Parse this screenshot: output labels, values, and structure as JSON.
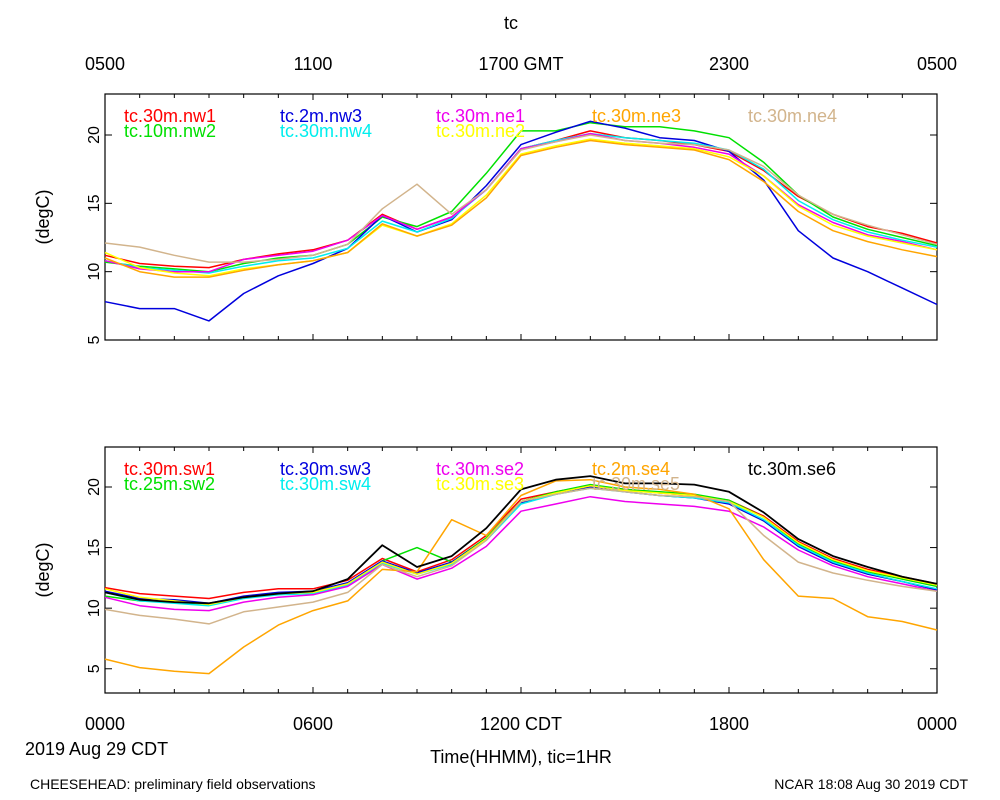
{
  "title": "tc",
  "top_axis_labels": [
    "0500",
    "1100",
    "1700 GMT",
    "2300",
    "0500"
  ],
  "bottom_axis_labels": [
    "0000",
    "0600",
    "1200 CDT",
    "1800",
    "0000"
  ],
  "date_label": "2019 Aug 29 CDT",
  "xlabel": "Time(HHMM), tic=1HR",
  "footer_left": "CHEESEHEAD: preliminary field observations",
  "footer_right": "NCAR 18:08 Aug 30 2019 CDT",
  "chart_data": [
    {
      "type": "line",
      "panel": "top",
      "ylabel": "(degC)",
      "ylim": [
        5,
        23
      ],
      "yticks": [
        5,
        10,
        15,
        20
      ],
      "xlim": [
        0,
        24
      ],
      "x": [
        0,
        1,
        2,
        3,
        4,
        5,
        6,
        7,
        8,
        9,
        10,
        11,
        12,
        13,
        14,
        15,
        16,
        17,
        18,
        19,
        20,
        21,
        22,
        23,
        24
      ],
      "series": [
        {
          "name": "tc.30m.nw1",
          "color": "#ff0000",
          "values": [
            11.2,
            10.6,
            10.4,
            10.3,
            10.9,
            11.3,
            11.6,
            12.3,
            14.2,
            13.1,
            14.0,
            16.0,
            19.0,
            19.6,
            20.3,
            19.8,
            19.6,
            19.3,
            18.8,
            17.4,
            15.5,
            14.2,
            13.3,
            12.8,
            12.1
          ]
        },
        {
          "name": "tc.10m.nw2",
          "color": "#00e000",
          "values": [
            10.7,
            10.4,
            10.2,
            10.0,
            10.6,
            11.0,
            11.2,
            12.0,
            14.0,
            13.3,
            14.4,
            17.2,
            20.3,
            20.3,
            20.9,
            20.6,
            20.6,
            20.3,
            19.8,
            18.0,
            15.6,
            14.0,
            13.1,
            12.5,
            11.9
          ]
        },
        {
          "name": "tc.2m.nw3",
          "color": "#0000dd",
          "values": [
            7.8,
            7.3,
            7.3,
            6.4,
            8.4,
            9.7,
            10.6,
            11.7,
            14.1,
            12.9,
            13.8,
            16.3,
            19.3,
            20.2,
            21.0,
            20.5,
            19.8,
            19.6,
            18.8,
            16.7,
            13.0,
            11.0,
            10.0,
            8.8,
            7.6
          ]
        },
        {
          "name": "tc.30m.nw4",
          "color": "#00eeee",
          "values": [
            10.8,
            10.3,
            10.1,
            9.9,
            10.4,
            10.8,
            11.0,
            11.7,
            13.7,
            12.9,
            13.9,
            16.0,
            19.0,
            19.6,
            20.1,
            19.8,
            19.6,
            19.4,
            18.9,
            17.5,
            15.2,
            13.8,
            12.9,
            12.3,
            11.8
          ]
        },
        {
          "name": "tc.30m.ne1",
          "color": "#ee00ee",
          "values": [
            10.8,
            10.2,
            10.0,
            10.0,
            10.9,
            11.2,
            11.5,
            12.3,
            14.1,
            13.1,
            14.0,
            16.0,
            19.0,
            19.5,
            20.1,
            19.6,
            19.4,
            19.1,
            18.6,
            17.0,
            14.9,
            13.6,
            12.7,
            12.2,
            11.6
          ]
        },
        {
          "name": "tc.30m.ne2",
          "color": "#ffff00",
          "values": [
            11.4,
            10.3,
            9.9,
            9.7,
            10.2,
            10.5,
            10.8,
            11.4,
            13.4,
            12.6,
            13.5,
            15.6,
            18.6,
            19.2,
            19.7,
            19.4,
            19.2,
            19.0,
            18.4,
            17.0,
            14.8,
            13.4,
            12.6,
            12.1,
            11.6
          ]
        },
        {
          "name": "tc.30m.ne3",
          "color": "#ffa500",
          "values": [
            11.0,
            10.0,
            9.6,
            9.6,
            10.1,
            10.5,
            10.8,
            11.4,
            13.5,
            12.6,
            13.4,
            15.4,
            18.5,
            19.1,
            19.6,
            19.3,
            19.1,
            18.9,
            18.2,
            16.6,
            14.4,
            13.0,
            12.2,
            11.6,
            11.1
          ]
        },
        {
          "name": "tc.30m.ne4",
          "color": "#d2b48c",
          "values": [
            12.1,
            11.8,
            11.2,
            10.7,
            10.7,
            10.9,
            11.2,
            12.0,
            14.6,
            16.4,
            14.2,
            16.0,
            18.9,
            19.5,
            20.0,
            19.6,
            19.4,
            19.3,
            18.9,
            17.7,
            15.6,
            14.2,
            13.4,
            12.7,
            12.0
          ]
        }
      ]
    },
    {
      "type": "line",
      "panel": "bottom",
      "ylabel": "(degC)",
      "ylim": [
        3,
        23.3
      ],
      "yticks": [
        5,
        10,
        15,
        20
      ],
      "xlim": [
        0,
        24
      ],
      "x": [
        0,
        1,
        2,
        3,
        4,
        5,
        6,
        7,
        8,
        9,
        10,
        11,
        12,
        13,
        14,
        15,
        16,
        17,
        18,
        19,
        20,
        21,
        22,
        23,
        24
      ],
      "series": [
        {
          "name": "tc.30m.sw1",
          "color": "#ff0000",
          "values": [
            11.7,
            11.2,
            11.0,
            10.8,
            11.3,
            11.6,
            11.6,
            12.3,
            14.1,
            13.0,
            14.0,
            16.0,
            19.0,
            19.6,
            20.1,
            19.8,
            19.5,
            19.3,
            18.9,
            17.6,
            15.5,
            14.1,
            13.2,
            12.6,
            12.0
          ]
        },
        {
          "name": "tc.25m.sw2",
          "color": "#00e000",
          "values": [
            11.0,
            10.6,
            10.5,
            10.3,
            10.9,
            11.2,
            11.3,
            12.0,
            13.9,
            15.0,
            13.8,
            15.8,
            18.8,
            19.6,
            20.2,
            19.8,
            19.6,
            19.4,
            18.9,
            17.5,
            15.3,
            13.9,
            13.0,
            12.4,
            11.8
          ]
        },
        {
          "name": "tc.30m.sw3",
          "color": "#0000dd",
          "values": [
            11.4,
            10.8,
            10.7,
            10.4,
            11.0,
            11.3,
            11.4,
            12.1,
            13.9,
            12.9,
            13.8,
            15.7,
            18.7,
            19.4,
            20.0,
            19.6,
            19.3,
            19.1,
            18.6,
            17.2,
            15.1,
            13.7,
            12.8,
            12.2,
            11.5
          ]
        },
        {
          "name": "tc.30m.sw4",
          "color": "#00eeee",
          "values": [
            11.3,
            10.6,
            10.4,
            10.2,
            10.8,
            11.1,
            11.2,
            11.9,
            13.7,
            12.8,
            13.6,
            15.6,
            18.6,
            19.4,
            19.9,
            19.6,
            19.3,
            19.1,
            18.7,
            17.3,
            15.2,
            13.8,
            12.9,
            12.2,
            11.6
          ]
        },
        {
          "name": "tc.30m.se2",
          "color": "#ee00ee",
          "values": [
            10.9,
            10.2,
            9.9,
            9.8,
            10.5,
            10.9,
            11.1,
            11.8,
            13.6,
            12.4,
            13.3,
            15.1,
            18.0,
            18.6,
            19.2,
            18.8,
            18.6,
            18.4,
            18.0,
            16.7,
            14.8,
            13.5,
            12.6,
            12.0,
            11.4
          ]
        },
        {
          "name": "tc.30m.se3",
          "color": "#ffff00",
          "values": [
            11.6,
            10.9,
            10.6,
            10.3,
            10.9,
            11.2,
            11.3,
            12.0,
            13.8,
            12.8,
            13.7,
            15.7,
            18.8,
            19.5,
            20.1,
            19.7,
            19.5,
            19.3,
            18.8,
            17.5,
            15.4,
            14.0,
            13.1,
            12.5,
            11.9
          ]
        },
        {
          "name": "tc.2m.se4",
          "color": "#ffa500",
          "values": [
            5.8,
            5.1,
            4.8,
            4.6,
            6.8,
            8.6,
            9.8,
            10.6,
            13.2,
            13.0,
            17.3,
            16.0,
            19.3,
            20.5,
            20.6,
            20.0,
            19.8,
            19.4,
            18.2,
            14.0,
            11.0,
            10.8,
            9.3,
            8.9,
            8.2
          ]
        },
        {
          "name": "tc.30m.se5",
          "color": "#d2b48c",
          "values": [
            9.9,
            9.4,
            9.1,
            8.7,
            9.7,
            10.1,
            10.5,
            11.3,
            13.6,
            12.6,
            13.5,
            15.6,
            18.8,
            19.4,
            19.9,
            19.6,
            19.3,
            19.2,
            18.8,
            16.0,
            13.8,
            12.9,
            12.3,
            11.8,
            11.4
          ]
        },
        {
          "name": "tc.30m.se6",
          "color": "#000000",
          "values": [
            11.3,
            10.7,
            10.5,
            10.4,
            10.9,
            11.2,
            11.4,
            12.4,
            15.2,
            13.4,
            14.3,
            16.6,
            19.8,
            20.6,
            20.9,
            20.3,
            20.3,
            20.2,
            19.6,
            17.9,
            15.7,
            14.3,
            13.4,
            12.6,
            12.0
          ]
        }
      ]
    }
  ]
}
